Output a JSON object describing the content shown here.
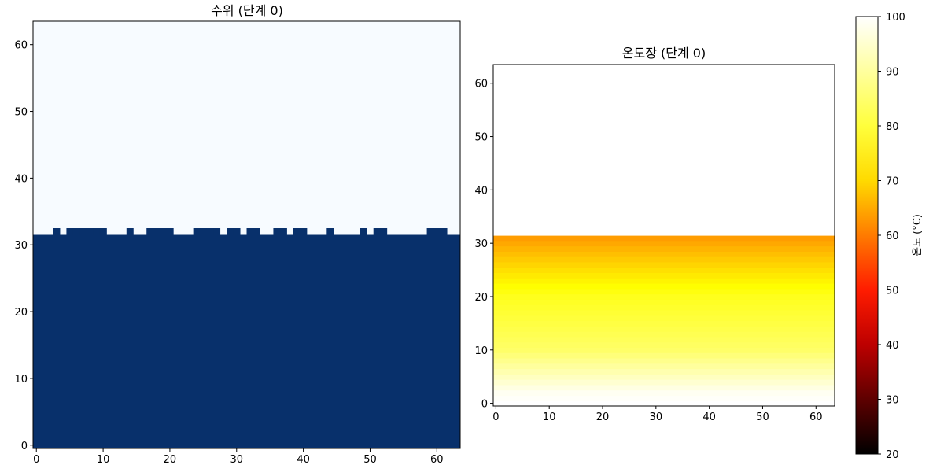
{
  "chart_data": [
    {
      "type": "heatmap",
      "title": "수위 (단계 0)",
      "xlabel": "",
      "ylabel": "",
      "xlim": [
        -0.5,
        63.5
      ],
      "ylim": [
        -0.5,
        63.5
      ],
      "xticks": [
        0,
        10,
        20,
        30,
        40,
        50,
        60
      ],
      "yticks": [
        0,
        10,
        20,
        30,
        40,
        50,
        60
      ],
      "grid": false,
      "colormap": {
        "low": "#f7fbff",
        "high": "#08306b"
      },
      "categories": [
        "empty",
        "water"
      ],
      "description_values": {
        "water_rows_all_columns": [
          0,
          31
        ],
        "extra_row": 32,
        "extra_row_water_columns": [
          3,
          5,
          6,
          7,
          8,
          9,
          10,
          14,
          17,
          18,
          19,
          20,
          24,
          25,
          26,
          27,
          29,
          30,
          32,
          33,
          36,
          37,
          39,
          40,
          44,
          49,
          51,
          52,
          59,
          60,
          61
        ]
      }
    },
    {
      "type": "heatmap",
      "title": "온도장 (단계 0)",
      "xlabel": "",
      "ylabel": "",
      "xlim": [
        -0.5,
        63.5
      ],
      "ylim": [
        -0.5,
        63.5
      ],
      "xticks": [
        0,
        10,
        20,
        30,
        40,
        50,
        60
      ],
      "yticks": [
        0,
        10,
        20,
        30,
        40,
        50,
        60
      ],
      "grid": false,
      "colorbar": {
        "label": "온도 (°C)",
        "range": [
          20,
          100
        ],
        "ticks": [
          20,
          30,
          40,
          50,
          60,
          70,
          80,
          90,
          100
        ],
        "colormap": "hot"
      },
      "temperature_profile": {
        "rows": [
          0,
          2,
          5,
          10,
          15,
          20,
          25,
          28,
          31
        ],
        "values": [
          100,
          99,
          95,
          88,
          85,
          82,
          76,
          72,
          68
        ],
        "above_row_31": 100
      }
    }
  ]
}
